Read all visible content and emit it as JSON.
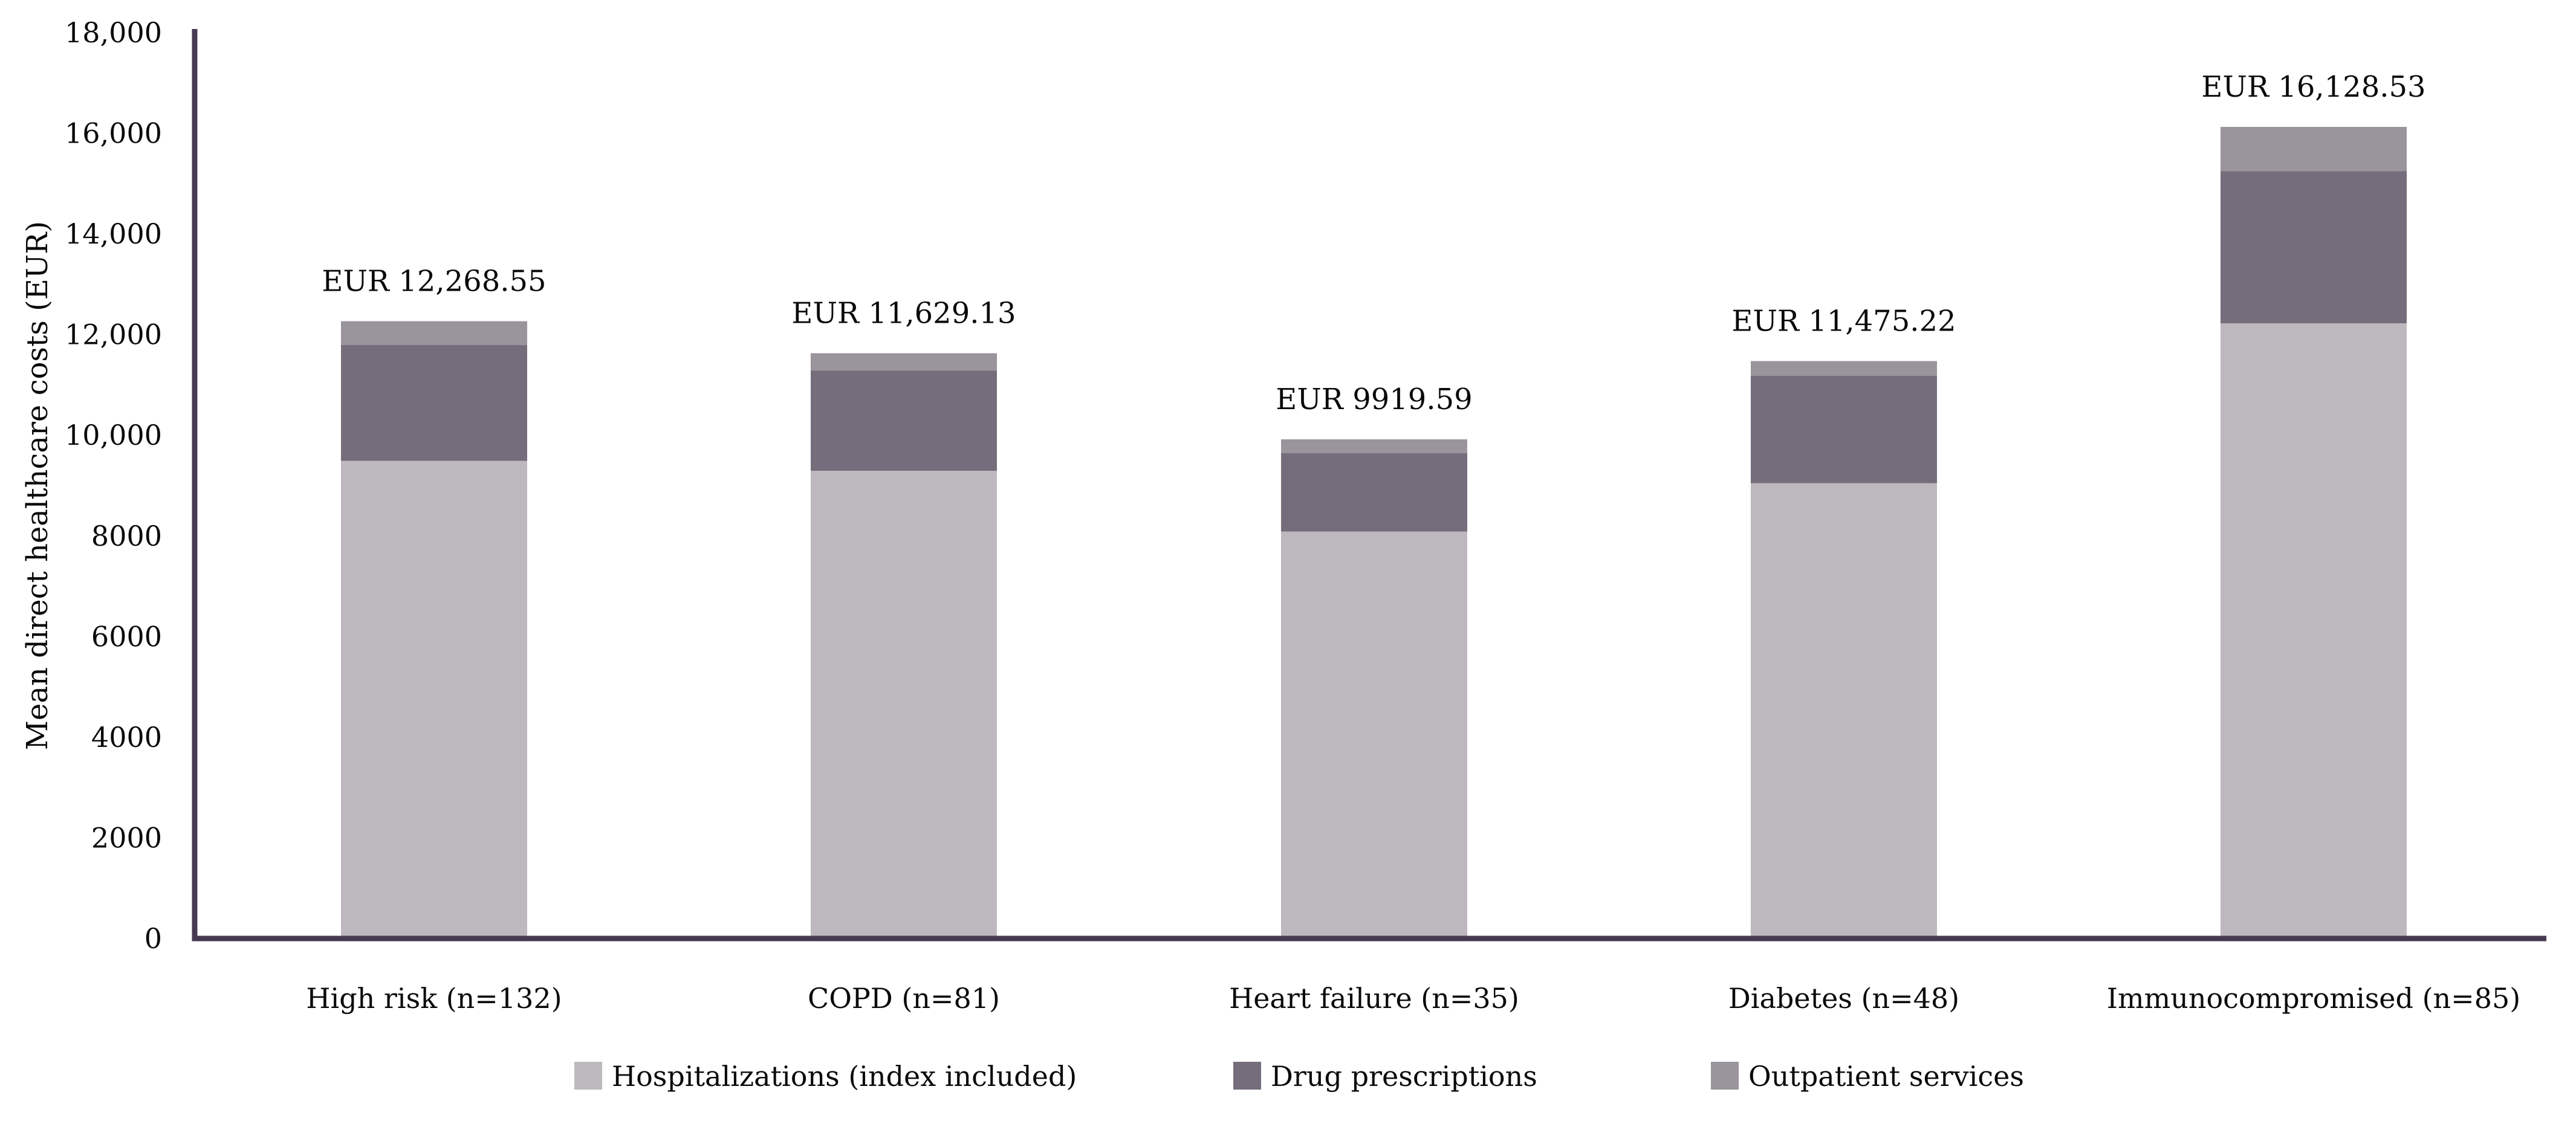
{
  "chart_data": {
    "type": "bar",
    "stacked": true,
    "title": "",
    "xlabel": "",
    "ylabel": "Mean direct healthcare costs (EUR)",
    "ylim": [
      0,
      18000
    ],
    "ytick_step": 2000,
    "ytick_labels": [
      "0",
      "2000",
      "4000",
      "6000",
      "8000",
      "10,000",
      "12,000",
      "14,000",
      "16,000",
      "18,000"
    ],
    "grid": false,
    "legend_position": "bottom",
    "categories": [
      "High risk (n=132)",
      "COPD (n=81)",
      "Heart failure (n=35)",
      "Diabetes (n=48)",
      "Immunocompromised (n=85)"
    ],
    "series": [
      {
        "name": "Hospitalizations (index included)",
        "color": "#bdb8be",
        "values": [
          9490,
          9293,
          8085,
          9050,
          12225
        ]
      },
      {
        "name": "Drug prescriptions",
        "color": "#756d7b",
        "values": [
          2300,
          1986,
          1560,
          2130,
          3020
        ]
      },
      {
        "name": "Outpatient services",
        "color": "#9a949c",
        "values": [
          478.55,
          350.13,
          274.59,
          295.22,
          883.53
        ]
      }
    ],
    "totals": [
      12268.55,
      11629.13,
      9919.59,
      11475.22,
      16128.53
    ],
    "total_labels": [
      "EUR 12,268.55",
      "EUR 11,629.13",
      "EUR 9919.59",
      "EUR 11,475.22",
      "EUR 16,128.53"
    ],
    "axis_color": "#463a52",
    "text_color": "#0a0a0a",
    "background_color": "#ffffff"
  }
}
